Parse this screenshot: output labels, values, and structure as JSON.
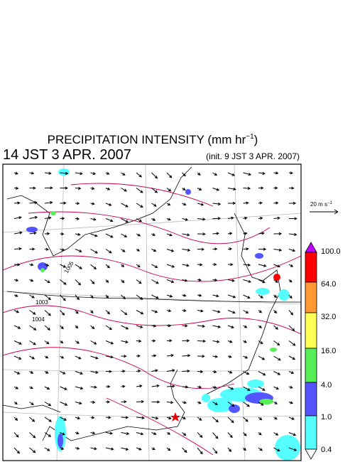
{
  "header": {
    "title": "PRECIPITATION INTENSITY (mm hr",
    "title_exp": "−1",
    "title_close": ")",
    "valid_time": "14 JST 3 APR. 2007",
    "init_time": "(init. 9 JST 3 APR. 2007)"
  },
  "wind_scale": {
    "label": "20 m s",
    "exp": "−1"
  },
  "colorbar": {
    "labels": [
      "100.0",
      "64.0",
      "32.0",
      "16.0",
      "4.0",
      "1.0",
      "0.4"
    ]
  },
  "contours": {
    "labels": [
      "1003",
      "1004",
      "1005"
    ]
  }
}
